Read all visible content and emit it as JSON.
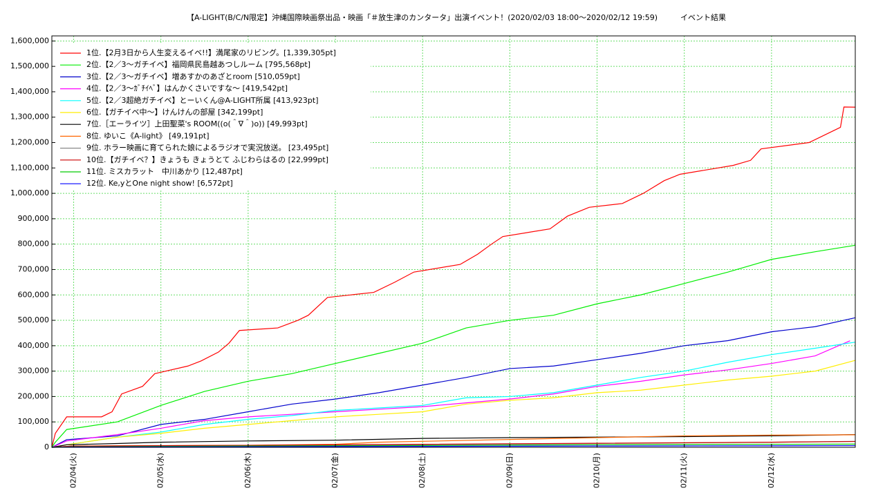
{
  "chart_data": {
    "type": "line",
    "drawstyle": "steps-post",
    "title": "【A-LIGHT(B/C/N限定】沖縄国際映画祭出品・映画「＃放生津のカンタータ」出演イベント！(2020/02/03 18:00〜2020/02/12 19:59)　　　イベント結果",
    "xlim": [
      3.75,
      12.96
    ],
    "ylim": [
      0,
      1620000
    ],
    "xticks": [
      {
        "value": 4,
        "label": "02/04(火)"
      },
      {
        "value": 5,
        "label": "02/05(水)"
      },
      {
        "value": 6,
        "label": "02/06(木)"
      },
      {
        "value": 7,
        "label": "02/07(金)"
      },
      {
        "value": 8,
        "label": "02/08(土)"
      },
      {
        "value": 9,
        "label": "02/09(日)"
      },
      {
        "value": 10,
        "label": "02/10(月)"
      },
      {
        "value": 11,
        "label": "02/11(火)"
      },
      {
        "value": 12,
        "label": "02/12(水)"
      }
    ],
    "yticks": [
      {
        "value": 0,
        "label": "0"
      },
      {
        "value": 100000,
        "label": "100,000"
      },
      {
        "value": 200000,
        "label": "200,000"
      },
      {
        "value": 300000,
        "label": "300,000"
      },
      {
        "value": 400000,
        "label": "400,000"
      },
      {
        "value": 500000,
        "label": "500,000"
      },
      {
        "value": 600000,
        "label": "600,000"
      },
      {
        "value": 700000,
        "label": "700,000"
      },
      {
        "value": 800000,
        "label": "800,000"
      },
      {
        "value": 900000,
        "label": "900,000"
      },
      {
        "value": 1000000,
        "label": "1,000,000"
      },
      {
        "value": 1100000,
        "label": "1,100,000"
      },
      {
        "value": 1200000,
        "label": "1,200,000"
      },
      {
        "value": 1300000,
        "label": "1,300,000"
      },
      {
        "value": 1400000,
        "label": "1,400,000"
      },
      {
        "value": 1500000,
        "label": "1,500,000"
      },
      {
        "value": 1600000,
        "label": "1,600,000"
      }
    ],
    "grid": true,
    "grid_color": "#66dd66",
    "legend": "upper left",
    "series": [
      {
        "name": "1位.【2月3日から人生変えるイベ!!】満尾家のリビング。[1,339,305pt]",
        "color": "#ff0000",
        "x": [
          3.75,
          3.79,
          3.92,
          4.32,
          4.44,
          4.55,
          4.79,
          4.93,
          5.31,
          5.46,
          5.66,
          5.78,
          5.9,
          6.34,
          6.57,
          6.69,
          6.91,
          7.44,
          7.68,
          7.9,
          8.43,
          8.63,
          8.79,
          8.92,
          9.46,
          9.66,
          9.91,
          10.29,
          10.53,
          10.77,
          10.95,
          11.56,
          11.76,
          11.88,
          12.43,
          12.67,
          12.79,
          12.83,
          12.96
        ],
        "values": [
          0,
          55000,
          120000,
          120000,
          140000,
          210000,
          240000,
          290000,
          320000,
          340000,
          375000,
          410000,
          460000,
          470000,
          500000,
          520000,
          590000,
          610000,
          650000,
          690000,
          720000,
          760000,
          800000,
          830000,
          860000,
          910000,
          945000,
          960000,
          1000000,
          1050000,
          1075000,
          1110000,
          1130000,
          1175000,
          1200000,
          1240000,
          1260000,
          1340000,
          1339305
        ]
      },
      {
        "name": "2位.【2／3〜ガチイベ】福岡県民島越あつしルーム [795,568pt]",
        "color": "#00ee00",
        "x": [
          3.75,
          3.79,
          3.92,
          4.5,
          5,
          5.5,
          6,
          6.5,
          7,
          7.5,
          8,
          8.5,
          9,
          9.5,
          10,
          10.5,
          11,
          11.5,
          12,
          12.5,
          12.96
        ],
        "values": [
          0,
          20000,
          70000,
          100000,
          165000,
          220000,
          260000,
          290000,
          330000,
          370000,
          410000,
          470000,
          500000,
          520000,
          565000,
          600000,
          645000,
          690000,
          740000,
          770000,
          795568
        ]
      },
      {
        "name": "3位.【2／3〜ガチイベ】増あすかのあざとroom [510,059pt]",
        "color": "#0000cc",
        "x": [
          3.75,
          3.92,
          4.5,
          5,
          5.5,
          6,
          6.5,
          7,
          7.5,
          8,
          8.5,
          9,
          9.5,
          10,
          10.5,
          11,
          11.5,
          12,
          12.5,
          12.96
        ],
        "values": [
          0,
          30000,
          45000,
          90000,
          110000,
          140000,
          170000,
          190000,
          215000,
          245000,
          275000,
          310000,
          320000,
          345000,
          370000,
          400000,
          420000,
          455000,
          475000,
          510059
        ]
      },
      {
        "name": "4位.【2／3〜ｶﾞﾁｲﾍﾞ】はんかくさいですな〜 [419,542pt]",
        "color": "#ff00ff",
        "x": [
          3.75,
          3.92,
          4.5,
          5,
          5.5,
          6,
          6.5,
          7,
          7.5,
          8,
          8.5,
          9,
          9.5,
          10,
          10.5,
          11,
          11.5,
          12,
          12.5,
          12.9
        ],
        "values": [
          0,
          25000,
          50000,
          75000,
          105000,
          120000,
          130000,
          140000,
          150000,
          160000,
          175000,
          190000,
          210000,
          240000,
          260000,
          285000,
          305000,
          330000,
          360000,
          419542
        ]
      },
      {
        "name": "5位.【2／3超絶ガチイベ】とーいくん@A-LIGHT所属 [413,923pt]",
        "color": "#00ffff",
        "x": [
          3.75,
          3.92,
          4.5,
          5,
          5.5,
          6,
          6.5,
          7,
          7.5,
          8,
          8.5,
          9,
          9.5,
          10,
          10.5,
          11,
          11.5,
          12,
          12.5,
          12.96
        ],
        "values": [
          0,
          10000,
          40000,
          60000,
          90000,
          110000,
          125000,
          145000,
          155000,
          165000,
          195000,
          200000,
          215000,
          245000,
          275000,
          300000,
          335000,
          365000,
          390000,
          413923
        ]
      },
      {
        "name": "6位.【ガチイベ中〜】けんけんの部屋 [342,199pt]",
        "color": "#ffee00",
        "x": [
          3.75,
          3.92,
          4.5,
          5,
          5.5,
          6,
          6.5,
          7,
          7.5,
          8,
          8.5,
          9,
          9.5,
          10,
          10.5,
          11,
          11.5,
          12,
          12.5,
          12.96
        ],
        "values": [
          0,
          10000,
          40000,
          55000,
          75000,
          90000,
          105000,
          120000,
          130000,
          140000,
          170000,
          185000,
          195000,
          215000,
          225000,
          245000,
          265000,
          280000,
          300000,
          342199
        ]
      },
      {
        "name": "7位.［エーライツ］上田聖菜's ROOM((o(＾∇＾)o)) [49,993pt]",
        "color": "#000000",
        "x": [
          3.75,
          3.92,
          4.5,
          5,
          6,
          7,
          8,
          9,
          10,
          11,
          12,
          12.96
        ],
        "values": [
          0,
          10000,
          15000,
          20000,
          25000,
          28000,
          35000,
          38000,
          40000,
          42000,
          45000,
          49993
        ]
      },
      {
        "name": "8位. ゆいこ《A-light》 [49,191pt]",
        "color": "#ff6600",
        "x": [
          3.75,
          4,
          6,
          7,
          7.5,
          10,
          11,
          12,
          12.96
        ],
        "values": [
          0,
          5000,
          8000,
          12000,
          20000,
          38000,
          45000,
          48000,
          49191
        ]
      },
      {
        "name": "9位. ホラー映画に育てられた娘によるラジオで実況放送。 [23,495pt]",
        "color": "#888888",
        "x": [
          3.75,
          4,
          6,
          8,
          10,
          12,
          12.96
        ],
        "values": [
          0,
          3000,
          5000,
          10000,
          15000,
          20000,
          23495
        ]
      },
      {
        "name": "10位.【ガチイベ？】きょうも きょうとて ふじわらはるの [22,999pt]",
        "color": "#cc0000",
        "x": [
          3.75,
          4,
          6,
          8,
          10,
          12,
          12.96
        ],
        "values": [
          0,
          5000,
          8000,
          12000,
          16000,
          20000,
          22999
        ]
      },
      {
        "name": "11位. ミスカラット　中川あかり [12,487pt]",
        "color": "#00cc00",
        "x": [
          3.75,
          4,
          6,
          8,
          10,
          12,
          12.96
        ],
        "values": [
          0,
          2000,
          5000,
          7000,
          10000,
          12000,
          12487
        ]
      },
      {
        "name": "12位. Ke,yとOne night show! [6,572pt]",
        "color": "#0000ff",
        "x": [
          3.75,
          4,
          7,
          10,
          12.96
        ],
        "values": [
          0,
          1000,
          3000,
          5000,
          6572
        ]
      }
    ]
  }
}
